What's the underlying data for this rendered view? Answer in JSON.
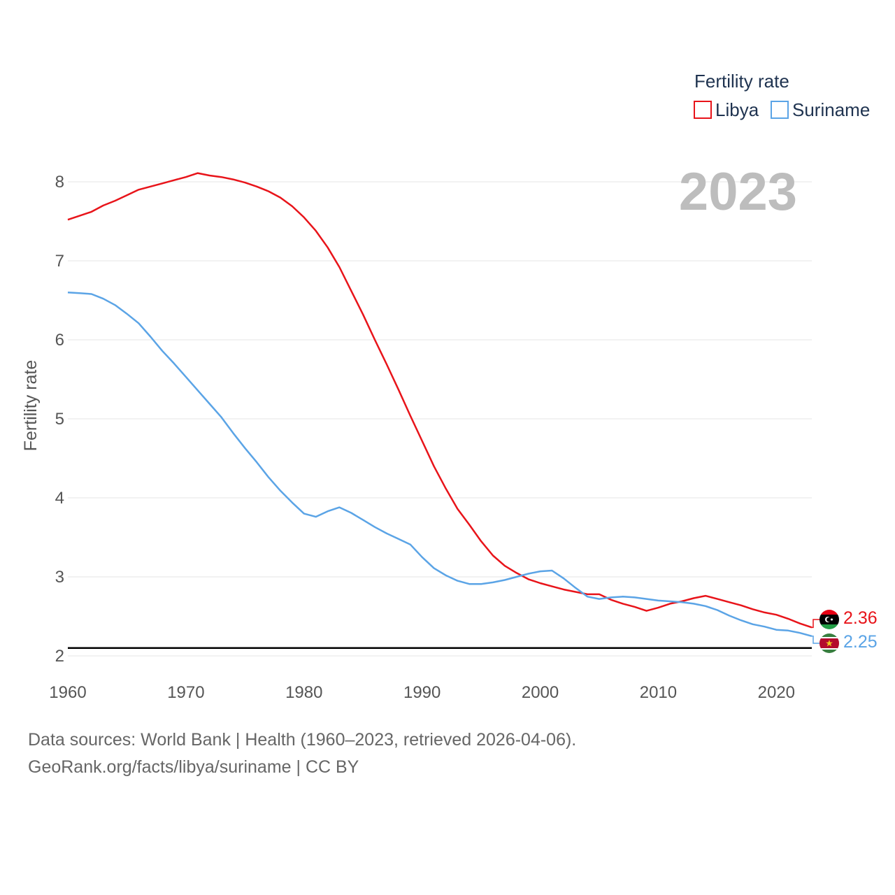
{
  "chart_data": {
    "type": "line",
    "ylabel": "Fertility rate",
    "xlabel": "",
    "xlim": [
      1960,
      2023
    ],
    "ylim": [
      2,
      8.2
    ],
    "x_ticks": [
      1960,
      1970,
      1980,
      1990,
      2000,
      2010,
      2020
    ],
    "y_ticks": [
      2,
      3,
      4,
      5,
      6,
      7,
      8
    ],
    "grid": true,
    "legend_title": "Fertility rate",
    "legend_position": "top-right",
    "year_display": "2023",
    "reference_line": 2.1,
    "x": [
      1960,
      1961,
      1962,
      1963,
      1964,
      1965,
      1966,
      1967,
      1968,
      1969,
      1970,
      1971,
      1972,
      1973,
      1974,
      1975,
      1976,
      1977,
      1978,
      1979,
      1980,
      1981,
      1982,
      1983,
      1984,
      1985,
      1986,
      1987,
      1988,
      1989,
      1990,
      1991,
      1992,
      1993,
      1994,
      1995,
      1996,
      1997,
      1998,
      1999,
      2000,
      2001,
      2002,
      2003,
      2004,
      2005,
      2006,
      2007,
      2008,
      2009,
      2010,
      2011,
      2012,
      2013,
      2014,
      2015,
      2016,
      2017,
      2018,
      2019,
      2020,
      2021,
      2022,
      2023
    ],
    "series": [
      {
        "name": "Libya",
        "color": "#e8141a",
        "end_label": "2.36",
        "values": [
          7.52,
          7.57,
          7.62,
          7.7,
          7.76,
          7.83,
          7.9,
          7.94,
          7.98,
          8.02,
          8.06,
          8.11,
          8.08,
          8.06,
          8.03,
          7.99,
          7.94,
          7.88,
          7.8,
          7.69,
          7.55,
          7.38,
          7.17,
          6.92,
          6.62,
          6.32,
          6.0,
          5.69,
          5.37,
          5.04,
          4.72,
          4.4,
          4.12,
          3.86,
          3.66,
          3.45,
          3.27,
          3.14,
          3.05,
          2.97,
          2.92,
          2.88,
          2.84,
          2.81,
          2.78,
          2.78,
          2.71,
          2.66,
          2.62,
          2.57,
          2.61,
          2.66,
          2.69,
          2.73,
          2.76,
          2.72,
          2.68,
          2.64,
          2.59,
          2.55,
          2.52,
          2.47,
          2.41,
          2.36
        ]
      },
      {
        "name": "Suriname",
        "color": "#5ba4e6",
        "end_label": "2.25",
        "values": [
          6.6,
          6.59,
          6.58,
          6.52,
          6.44,
          6.33,
          6.21,
          6.04,
          5.86,
          5.7,
          5.53,
          5.36,
          5.19,
          5.02,
          4.82,
          4.63,
          4.45,
          4.26,
          4.09,
          3.94,
          3.8,
          3.76,
          3.83,
          3.88,
          3.81,
          3.72,
          3.63,
          3.55,
          3.48,
          3.41,
          3.25,
          3.11,
          3.02,
          2.95,
          2.91,
          2.91,
          2.93,
          2.96,
          3.0,
          3.04,
          3.07,
          3.08,
          2.98,
          2.86,
          2.75,
          2.72,
          2.74,
          2.75,
          2.74,
          2.72,
          2.7,
          2.69,
          2.68,
          2.66,
          2.63,
          2.58,
          2.51,
          2.45,
          2.4,
          2.37,
          2.33,
          2.32,
          2.29,
          2.25
        ]
      }
    ]
  },
  "footer": {
    "sources": "Data sources: World Bank | Health (1960–2023, retrieved 2026-04-06).",
    "credit": "GeoRank.org/facts/libya/suriname | CC BY"
  }
}
